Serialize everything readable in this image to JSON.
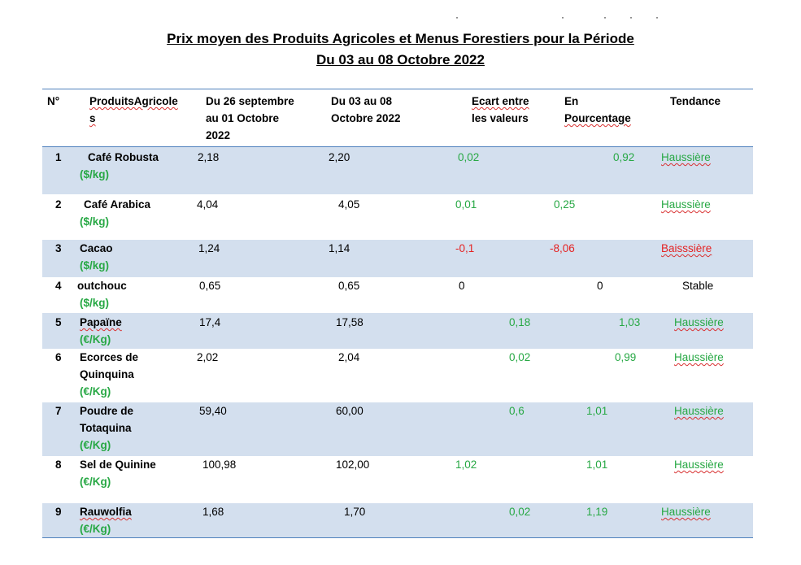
{
  "title_line1": "Prix moyen des Produits Agricoles et Menus Forestiers pour la Période",
  "title_line2": "Du 03 au 08 Octobre 2022",
  "headers": {
    "num": "N°",
    "product_a": "ProduitsAgricole",
    "product_b": "s",
    "prev_a": "Du 26 septembre",
    "prev_b": "au 01 Octobre",
    "prev_c": "2022",
    "curr_a": "Du 03 au 08",
    "curr_b": "Octobre 2022",
    "diff_a": "Ecart entre",
    "diff_b": "les valeurs",
    "pct_a": "En",
    "pct_b": "Pourcentage",
    "trend": "Tendance"
  },
  "rows": [
    {
      "num": "1",
      "name1": "Café Robusta",
      "name2": "",
      "unit": "($/kg)",
      "prev": "2,18",
      "curr": "2,20",
      "diff": "0,02",
      "pct": "0,92",
      "trend": "Haussière"
    },
    {
      "num": "2",
      "name1": "Café Arabica",
      "name2": "",
      "unit": "($/kg)",
      "prev": "4,04",
      "curr": "4,05",
      "diff": "0,01",
      "pct": "0,25",
      "trend": "Haussière"
    },
    {
      "num": "3",
      "name1": "Cacao",
      "name2": "",
      "unit": "($/kg)",
      "prev": "1,24",
      "curr": "1,14",
      "diff": "-0,1",
      "pct": "-8,06",
      "trend": "Baisssière"
    },
    {
      "num": "4",
      "name1": "outchouc",
      "name2": "",
      "unit": "($/kg)",
      "prev": "0,65",
      "curr": "0,65",
      "diff": "0",
      "pct": "0",
      "trend": "Stable"
    },
    {
      "num": "5",
      "name1": "Papaïne",
      "name2": "",
      "unit": "(€/Kg)",
      "prev": "17,4",
      "curr": "17,58",
      "diff": "0,18",
      "pct": "1,03",
      "trend": "Haussière"
    },
    {
      "num": "6",
      "name1": "Ecorces de",
      "name2": "Quinquina",
      "unit": "(€/Kg)",
      "prev": "2,02",
      "curr": "2,04",
      "diff": "0,02",
      "pct": "0,99",
      "trend": "Haussière"
    },
    {
      "num": "7",
      "name1": "Poudre de",
      "name2": "Totaquina",
      "unit": "(€/Kg)",
      "prev": "59,40",
      "curr": "60,00",
      "diff": "0,6",
      "pct": "1,01",
      "trend": "Haussière"
    },
    {
      "num": "8",
      "name1": "Sel de Quinine",
      "name2": "",
      "unit": "(€/Kg)",
      "prev": "100,98",
      "curr": "102,00",
      "diff": "1,02",
      "pct": "1,01",
      "trend": "Haussière"
    },
    {
      "num": "9",
      "name1": "Rauwolfia",
      "name2": "",
      "unit": "(€/Kg)",
      "prev": "1,68",
      "curr": "1,70",
      "diff": "0,02",
      "pct": "1,19",
      "trend": "Haussière"
    }
  ]
}
